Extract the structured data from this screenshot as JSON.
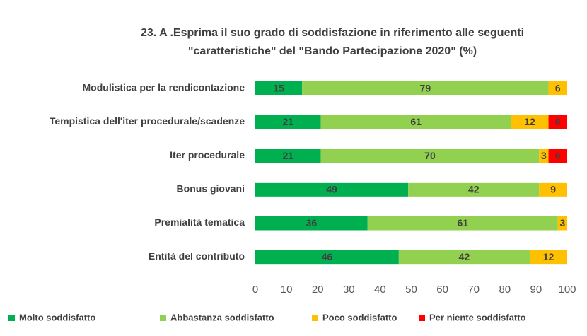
{
  "chart_data": {
    "type": "stacked_barh",
    "title": [
      "23. A .Esprima il suo grado di soddisfazione  in riferimento alle seguenti",
      "\"caratteristiche\" del \"Bando Partecipazione 2020\" (%)"
    ],
    "categories": [
      "Modulistica per la rendicontazione",
      "Tempistica dell'iter procedurale/scadenze",
      "Iter procedurale",
      "Bonus giovani",
      "Premialità tematica",
      "Entità del contributo"
    ],
    "series": [
      {
        "name": "Molto soddisfatto",
        "color": "#00b050",
        "values": [
          15,
          21,
          21,
          49,
          36,
          46
        ]
      },
      {
        "name": "Abbastanza soddisfatto",
        "color": "#92d050",
        "values": [
          79,
          61,
          70,
          42,
          61,
          42
        ]
      },
      {
        "name": "Poco soddisfatto",
        "color": "#ffc000",
        "values": [
          6,
          12,
          3,
          9,
          3,
          12
        ]
      },
      {
        "name": "Per niente soddisfatto",
        "color": "#ff0000",
        "values": [
          null,
          6,
          6,
          null,
          null,
          null
        ]
      }
    ],
    "xlim": [
      0,
      100
    ],
    "xticks": [
      0,
      10,
      20,
      30,
      40,
      50,
      60,
      70,
      80,
      90,
      100
    ],
    "grid": false,
    "legend": "bottom"
  }
}
